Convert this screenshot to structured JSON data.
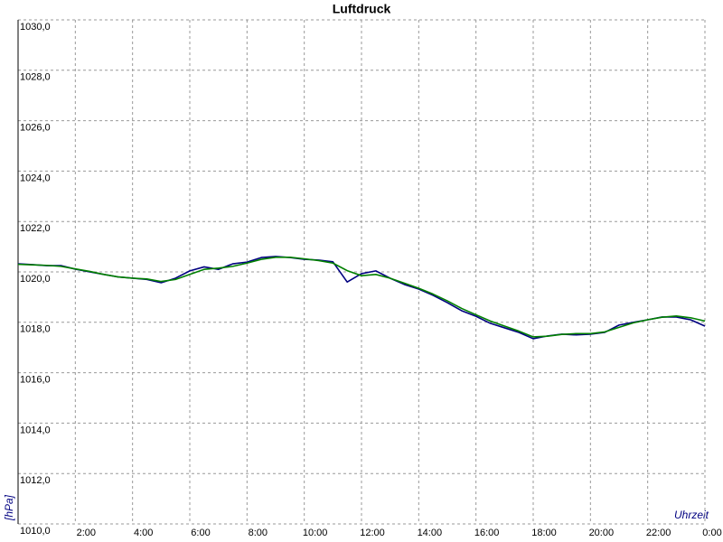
{
  "chart_data": {
    "type": "line",
    "title": "Luftdruck",
    "ylabel": "[hPa]",
    "xlabel": "Uhrzeit",
    "x": [
      0,
      0.5,
      1,
      1.5,
      2,
      2.5,
      3,
      3.5,
      4,
      4.5,
      5,
      5.5,
      6,
      6.5,
      7,
      7.5,
      8,
      8.5,
      9,
      9.5,
      10,
      10.5,
      11,
      11.5,
      12,
      12.5,
      13,
      13.5,
      14,
      14.5,
      15,
      15.5,
      16,
      16.5,
      17,
      17.5,
      18,
      18.5,
      19,
      19.5,
      20,
      20.5,
      21,
      21.5,
      22,
      22.5,
      23,
      23.5,
      24
    ],
    "series": [
      {
        "color": "#000080",
        "values": [
          1020.32,
          1020.29,
          1020.25,
          1020.25,
          1020.11,
          1020.0,
          1019.9,
          1019.8,
          1019.75,
          1019.7,
          1019.57,
          1019.75,
          1020.04,
          1020.2,
          1020.1,
          1020.32,
          1020.39,
          1020.57,
          1020.61,
          1020.57,
          1020.5,
          1020.47,
          1020.4,
          1019.6,
          1019.93,
          1020.04,
          1019.75,
          1019.5,
          1019.32,
          1019.07,
          1018.78,
          1018.46,
          1018.24,
          1017.96,
          1017.78,
          1017.6,
          1017.35,
          1017.46,
          1017.53,
          1017.5,
          1017.53,
          1017.6,
          1017.89,
          1018.0,
          1018.1,
          1018.21,
          1018.21,
          1018.1,
          1017.85
        ]
      },
      {
        "color": "#008000",
        "values": [
          1020.3,
          1020.28,
          1020.26,
          1020.22,
          1020.12,
          1020.02,
          1019.9,
          1019.8,
          1019.75,
          1019.72,
          1019.62,
          1019.7,
          1019.9,
          1020.1,
          1020.15,
          1020.22,
          1020.35,
          1020.5,
          1020.58,
          1020.58,
          1020.52,
          1020.45,
          1020.35,
          1020.05,
          1019.85,
          1019.9,
          1019.75,
          1019.55,
          1019.35,
          1019.12,
          1018.85,
          1018.55,
          1018.3,
          1018.05,
          1017.85,
          1017.65,
          1017.42,
          1017.45,
          1017.52,
          1017.55,
          1017.55,
          1017.62,
          1017.8,
          1017.98,
          1018.1,
          1018.2,
          1018.25,
          1018.18,
          1018.05
        ]
      }
    ],
    "xlim": [
      0,
      24
    ],
    "xticks": [
      {
        "value": 2,
        "label": "2:00"
      },
      {
        "value": 4,
        "label": "4:00"
      },
      {
        "value": 6,
        "label": "6:00"
      },
      {
        "value": 8,
        "label": "8:00"
      },
      {
        "value": 10,
        "label": "10:00"
      },
      {
        "value": 12,
        "label": "12:00"
      },
      {
        "value": 14,
        "label": "14:00"
      },
      {
        "value": 16,
        "label": "16:00"
      },
      {
        "value": 18,
        "label": "18:00"
      },
      {
        "value": 20,
        "label": "20:00"
      },
      {
        "value": 22,
        "label": "22:00"
      },
      {
        "value": 24,
        "label": "0:00"
      }
    ],
    "ylim": [
      1010,
      1030
    ],
    "yticks": [
      {
        "value": 1010,
        "label": "1010,0"
      },
      {
        "value": 1012,
        "label": "1012,0"
      },
      {
        "value": 1014,
        "label": "1014,0"
      },
      {
        "value": 1016,
        "label": "1016,0"
      },
      {
        "value": 1018,
        "label": "1018,0"
      },
      {
        "value": 1020,
        "label": "1020,0"
      },
      {
        "value": 1022,
        "label": "1022,0"
      },
      {
        "value": 1024,
        "label": "1024,0"
      },
      {
        "value": 1026,
        "label": "1026,0"
      },
      {
        "value": 1028,
        "label": "1028,0"
      },
      {
        "value": 1030,
        "label": "1030,0"
      }
    ],
    "grid": true
  }
}
